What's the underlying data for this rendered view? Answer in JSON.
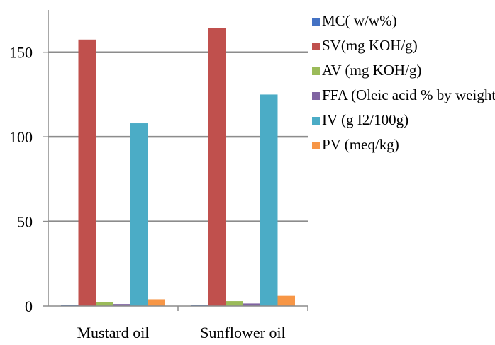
{
  "chart_data": {
    "type": "bar",
    "title": "",
    "xlabel": "",
    "ylabel": "",
    "ylim": [
      0,
      175
    ],
    "yticks": [
      0,
      50,
      100,
      150
    ],
    "grid": true,
    "legend_position": "right",
    "categories": [
      "Mustard oil",
      "Sunflower oil"
    ],
    "series": [
      {
        "name": "MC( w/w%)",
        "color": "#4472C4",
        "values": [
          0.2,
          0.2
        ]
      },
      {
        "name": "SV(mg KOH/g)",
        "color": "#C0504D",
        "values": [
          157.5,
          164.5
        ]
      },
      {
        "name": "AV (mg KOH/g)",
        "color": "#9BBB59",
        "values": [
          2.3,
          2.9
        ]
      },
      {
        "name": "FFA (Oleic acid % by weight)",
        "color": "#8064A2",
        "values": [
          1.2,
          1.5
        ]
      },
      {
        "name": "IV (g I2/100g)",
        "color": "#4BACC6",
        "values": [
          108,
          125
        ]
      },
      {
        "name": "PV (meq/kg)",
        "color": "#F79646",
        "values": [
          4,
          6
        ]
      }
    ]
  }
}
